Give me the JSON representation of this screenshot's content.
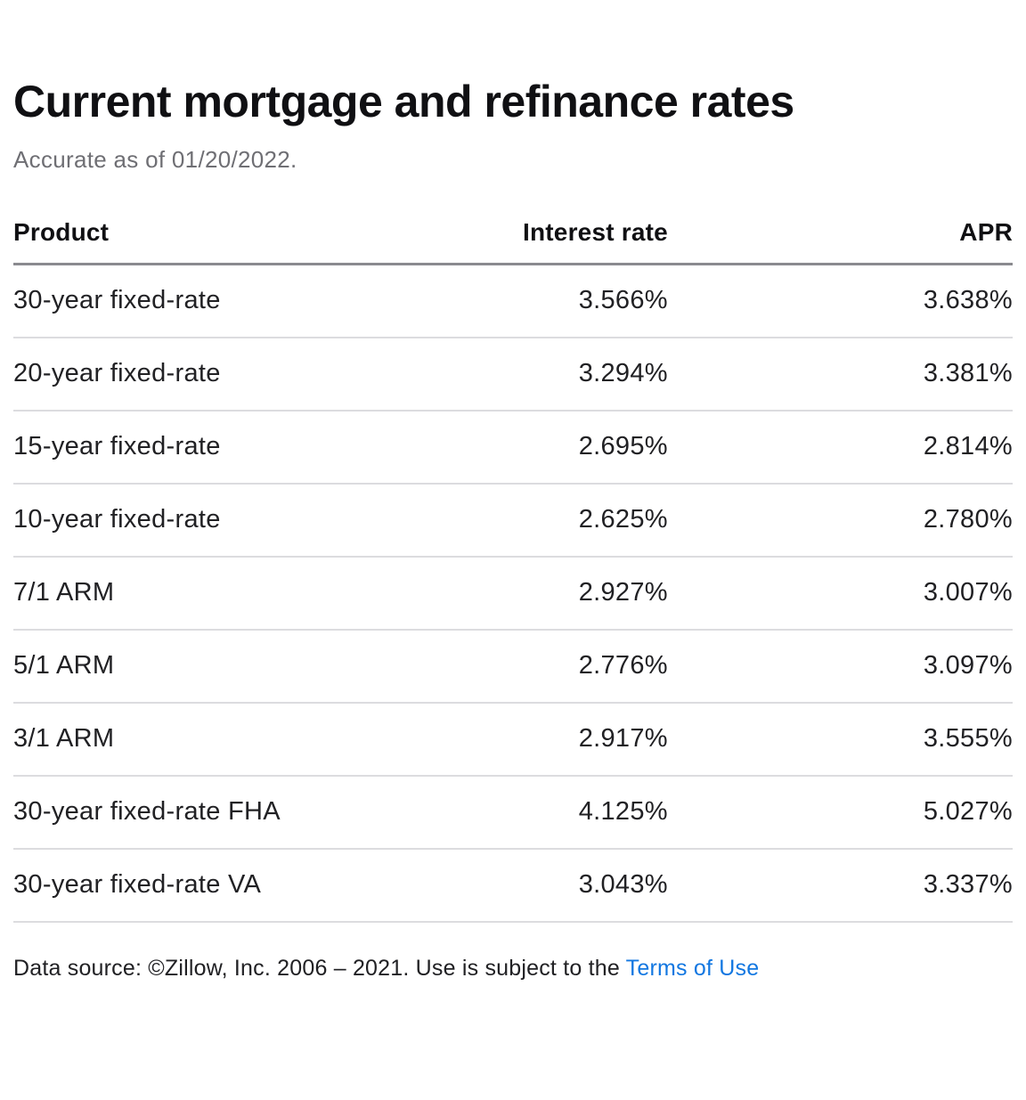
{
  "page": {
    "title": "Current mortgage and refinance rates",
    "subtitle": "Accurate as of 01/20/2022."
  },
  "table": {
    "columns": [
      {
        "key": "product",
        "label": "Product",
        "align": "left"
      },
      {
        "key": "interest_rate",
        "label": "Interest rate",
        "align": "right"
      },
      {
        "key": "apr",
        "label": "APR",
        "align": "right"
      }
    ],
    "rows": [
      {
        "product": "30-year fixed-rate",
        "interest_rate": "3.566%",
        "apr": "3.638%"
      },
      {
        "product": "20-year fixed-rate",
        "interest_rate": "3.294%",
        "apr": "3.381%"
      },
      {
        "product": "15-year fixed-rate",
        "interest_rate": "2.695%",
        "apr": "2.814%"
      },
      {
        "product": "10-year fixed-rate",
        "interest_rate": "2.625%",
        "apr": "2.780%"
      },
      {
        "product": "7/1 ARM",
        "interest_rate": "2.927%",
        "apr": "3.007%"
      },
      {
        "product": "5/1 ARM",
        "interest_rate": "2.776%",
        "apr": "3.097%"
      },
      {
        "product": "3/1 ARM",
        "interest_rate": "2.917%",
        "apr": "3.555%"
      },
      {
        "product": "30-year fixed-rate FHA",
        "interest_rate": "4.125%",
        "apr": "5.027%"
      },
      {
        "product": "30-year fixed-rate VA",
        "interest_rate": "3.043%",
        "apr": "3.337%"
      }
    ]
  },
  "footer": {
    "text_before_link": "Data source: ©Zillow, Inc. 2006 – 2021. Use is subject to the ",
    "link_label": "Terms of Use"
  },
  "colors": {
    "title": "#101013",
    "subtitle": "#6f6f74",
    "row_text": "#212124",
    "header_border": "#8a8a8f",
    "row_divider": "#dcdcdf",
    "link": "#1277e1",
    "background": "#ffffff"
  },
  "chart_data": {
    "type": "table",
    "title": "Current mortgage and refinance rates",
    "subtitle": "Accurate as of 01/20/2022.",
    "columns": [
      "Product",
      "Interest rate",
      "APR"
    ],
    "rows": [
      [
        "30-year fixed-rate",
        "3.566%",
        "3.638%"
      ],
      [
        "20-year fixed-rate",
        "3.294%",
        "3.381%"
      ],
      [
        "15-year fixed-rate",
        "2.695%",
        "2.814%"
      ],
      [
        "10-year fixed-rate",
        "2.625%",
        "2.780%"
      ],
      [
        "7/1 ARM",
        "2.927%",
        "3.007%"
      ],
      [
        "5/1 ARM",
        "2.776%",
        "3.097%"
      ],
      [
        "3/1 ARM",
        "2.917%",
        "3.555%"
      ],
      [
        "30-year fixed-rate FHA",
        "4.125%",
        "5.027%"
      ],
      [
        "30-year fixed-rate VA",
        "3.043%",
        "3.337%"
      ]
    ]
  }
}
